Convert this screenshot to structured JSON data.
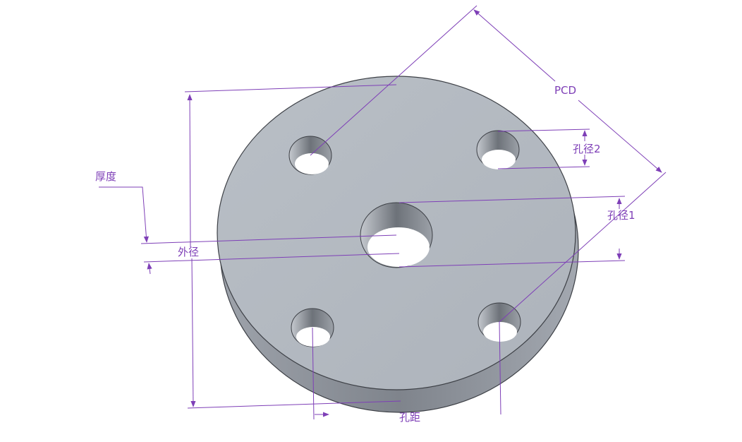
{
  "colors": {
    "background": "#ffffff",
    "dimension": "#7e3fb7",
    "face": "#b4bac2",
    "side": "#8d929b",
    "hole_wall": "#7b8088",
    "outline": "#3d4046"
  },
  "labels": {
    "pcd": "PCD",
    "hole_dia_2": "孔径2",
    "hole_dia_1": "孔径1",
    "thickness": "厚度",
    "outer_dia": "外径",
    "hole_spacing": "孔距"
  }
}
